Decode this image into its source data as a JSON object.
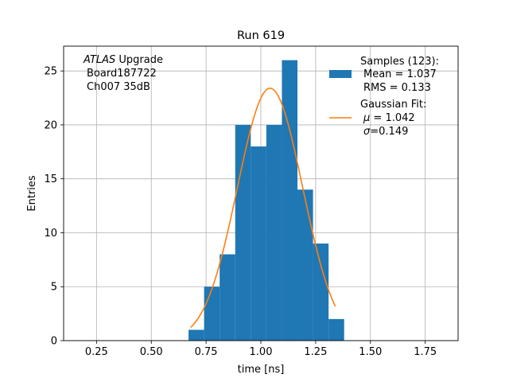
{
  "chart_data": {
    "type": "bar",
    "title": "Run 619",
    "xlabel": "time [ns]",
    "ylabel": "Entries",
    "xlim": [
      0.1,
      1.9
    ],
    "ylim": [
      0,
      27.3
    ],
    "grid": true,
    "x_ticks": [
      "0.25",
      "0.50",
      "0.75",
      "1.00",
      "1.25",
      "1.50",
      "1.75"
    ],
    "x_tick_values": [
      0.25,
      0.5,
      0.75,
      1.0,
      1.25,
      1.5,
      1.75
    ],
    "y_ticks": [
      "0",
      "5",
      "10",
      "15",
      "20",
      "25"
    ],
    "y_tick_values": [
      0,
      5,
      10,
      15,
      20,
      25
    ],
    "bin_edges": [
      0.67,
      0.741,
      0.812,
      0.883,
      0.954,
      1.025,
      1.096,
      1.167,
      1.238,
      1.309,
      1.38
    ],
    "bin_counts": [
      1,
      5,
      8,
      20,
      18,
      20,
      26,
      14,
      9,
      2
    ],
    "bar_color": "#1f77b4",
    "fit": {
      "mu": 1.042,
      "sigma": 0.149,
      "amplitude": 23.4,
      "x_range": [
        0.68,
        1.34
      ],
      "color": "#ff7f0e"
    },
    "annotation": {
      "italic": "ATLAS",
      "rest": " Upgrade",
      "line2": "Board187722",
      "line3": "Ch007 35dB"
    },
    "legend": {
      "placement": "top-right",
      "samples": {
        "line1": "Samples (123):",
        "line2": "Mean = 1.037",
        "line3": "RMS = 0.133"
      },
      "fit": {
        "line1": "Gaussian Fit:",
        "mu_symbol": "μ",
        "mu_text": " = 1.042",
        "sigma_symbol": "σ",
        "sigma_text": "=0.149"
      }
    }
  }
}
